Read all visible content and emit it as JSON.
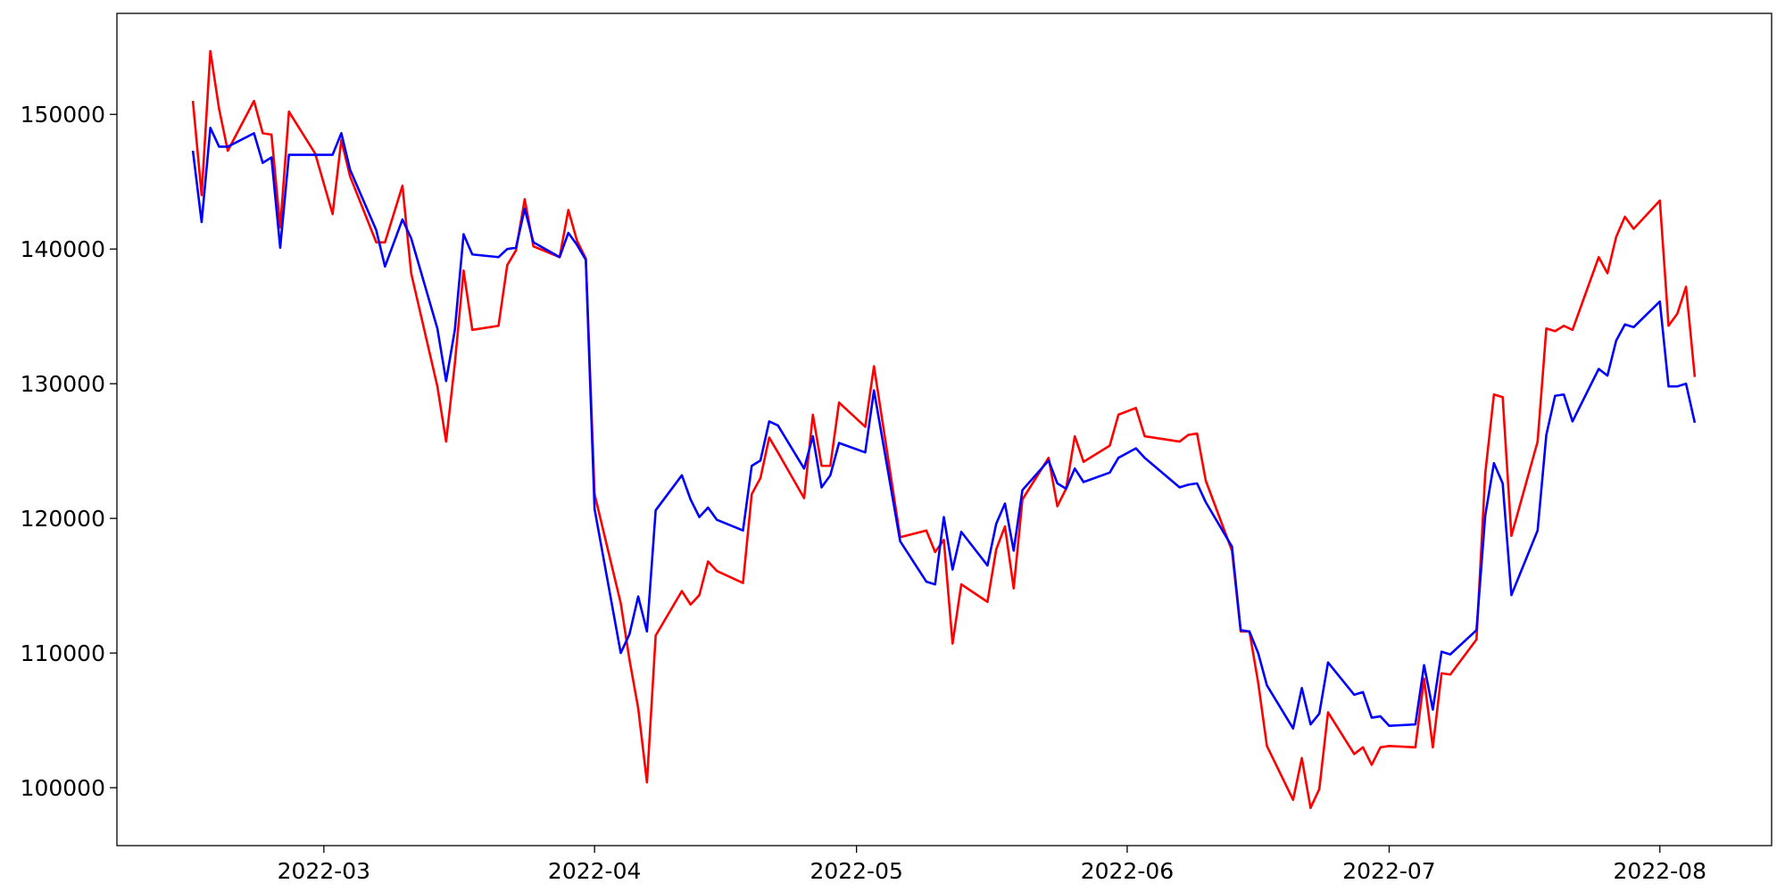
{
  "chart_data": {
    "type": "line",
    "x": [
      45,
      46,
      47,
      48,
      49,
      52,
      53,
      54,
      55,
      56,
      59,
      61,
      62,
      63,
      66,
      67,
      69,
      70,
      73,
      74,
      75,
      76,
      77,
      80,
      81,
      82,
      83,
      84,
      87,
      88,
      89,
      90,
      91,
      94,
      95,
      96,
      97,
      98,
      101,
      102,
      103,
      104,
      105,
      108,
      109,
      110,
      111,
      112,
      115,
      116,
      117,
      118,
      119,
      122,
      123,
      126,
      129,
      130,
      131,
      132,
      133,
      136,
      137,
      138,
      139,
      140,
      143,
      144,
      145,
      146,
      147,
      150,
      151,
      153,
      154,
      158,
      159,
      160,
      161,
      164,
      165,
      166,
      167,
      168,
      171,
      172,
      173,
      174,
      175,
      178,
      179,
      180,
      181,
      182,
      185,
      186,
      187,
      188,
      189,
      192,
      193,
      194,
      195,
      196,
      199,
      200,
      201,
      202,
      203,
      206,
      207,
      208,
      209,
      210,
      213,
      214,
      215,
      216,
      217
    ],
    "series": [
      {
        "color": "#ff0000",
        "values": [
          151000,
          144000,
          154700,
          150400,
          147300,
          151000,
          148600,
          148500,
          141600,
          150200,
          147100,
          142600,
          148100,
          145400,
          140500,
          140500,
          144700,
          138200,
          129800,
          125700,
          131500,
          138400,
          134000,
          134300,
          138800,
          139900,
          143700,
          140200,
          139400,
          142900,
          140600,
          139300,
          121800,
          113700,
          109500,
          105900,
          100400,
          111300,
          114600,
          113600,
          114300,
          116800,
          116100,
          115200,
          121800,
          123000,
          126000,
          124900,
          121500,
          127700,
          123900,
          123900,
          128600,
          126800,
          131300,
          118600,
          119100,
          117500,
          118400,
          110700,
          115100,
          113800,
          117700,
          119400,
          114800,
          121400,
          124500,
          120900,
          122200,
          126100,
          124200,
          125400,
          127700,
          128200,
          126100,
          125700,
          126200,
          126300,
          122800,
          117600,
          111600,
          111600,
          107800,
          103100,
          99100,
          102200,
          98500,
          99900,
          105600,
          102500,
          103000,
          101700,
          103000,
          103100,
          103000,
          108100,
          103000,
          108500,
          108400,
          111000,
          123300,
          129200,
          129000,
          118700,
          125700,
          134100,
          133900,
          134300,
          134000,
          139400,
          138200,
          140900,
          142400,
          141500,
          143600,
          134300,
          135200,
          137200,
          130500
        ]
      },
      {
        "color": "#0000ff",
        "values": [
          147300,
          142000,
          149000,
          147600,
          147600,
          148600,
          146400,
          146800,
          140100,
          147000,
          147000,
          147000,
          148600,
          145900,
          141400,
          138700,
          142200,
          140800,
          134100,
          130200,
          134000,
          141100,
          139600,
          139400,
          140000,
          140100,
          143000,
          140500,
          139400,
          141200,
          140300,
          139200,
          120700,
          110000,
          111400,
          114200,
          111600,
          120600,
          123200,
          121400,
          120100,
          120800,
          119900,
          119100,
          123900,
          124300,
          127200,
          126900,
          123700,
          126100,
          122300,
          123200,
          125600,
          124900,
          129500,
          118300,
          115300,
          115100,
          120100,
          116200,
          119000,
          116500,
          119600,
          121100,
          117600,
          122100,
          124300,
          122600,
          122200,
          123700,
          122700,
          123400,
          124500,
          125200,
          124500,
          122300,
          122500,
          122600,
          121200,
          117900,
          111700,
          111600,
          110000,
          107600,
          104400,
          107400,
          104700,
          105500,
          109300,
          106900,
          107100,
          105200,
          105300,
          104600,
          104700,
          109100,
          105800,
          110100,
          109900,
          111700,
          120200,
          124100,
          122600,
          114300,
          119100,
          126200,
          129100,
          129200,
          127200,
          131100,
          130600,
          133200,
          134400,
          134200,
          136100,
          129800,
          129800,
          130000,
          127100
        ]
      }
    ],
    "xlim": [
      36.3,
      225.8
    ],
    "xticks": [
      {
        "value": 60,
        "label": "2022-03"
      },
      {
        "value": 91,
        "label": "2022-04"
      },
      {
        "value": 121,
        "label": "2022-05"
      },
      {
        "value": 152,
        "label": "2022-06"
      },
      {
        "value": 182,
        "label": "2022-07"
      },
      {
        "value": 213,
        "label": "2022-08"
      }
    ],
    "ylim": [
      95700,
      157500
    ],
    "yticks": [
      100000,
      110000,
      120000,
      130000,
      140000,
      150000
    ],
    "grid": false
  }
}
